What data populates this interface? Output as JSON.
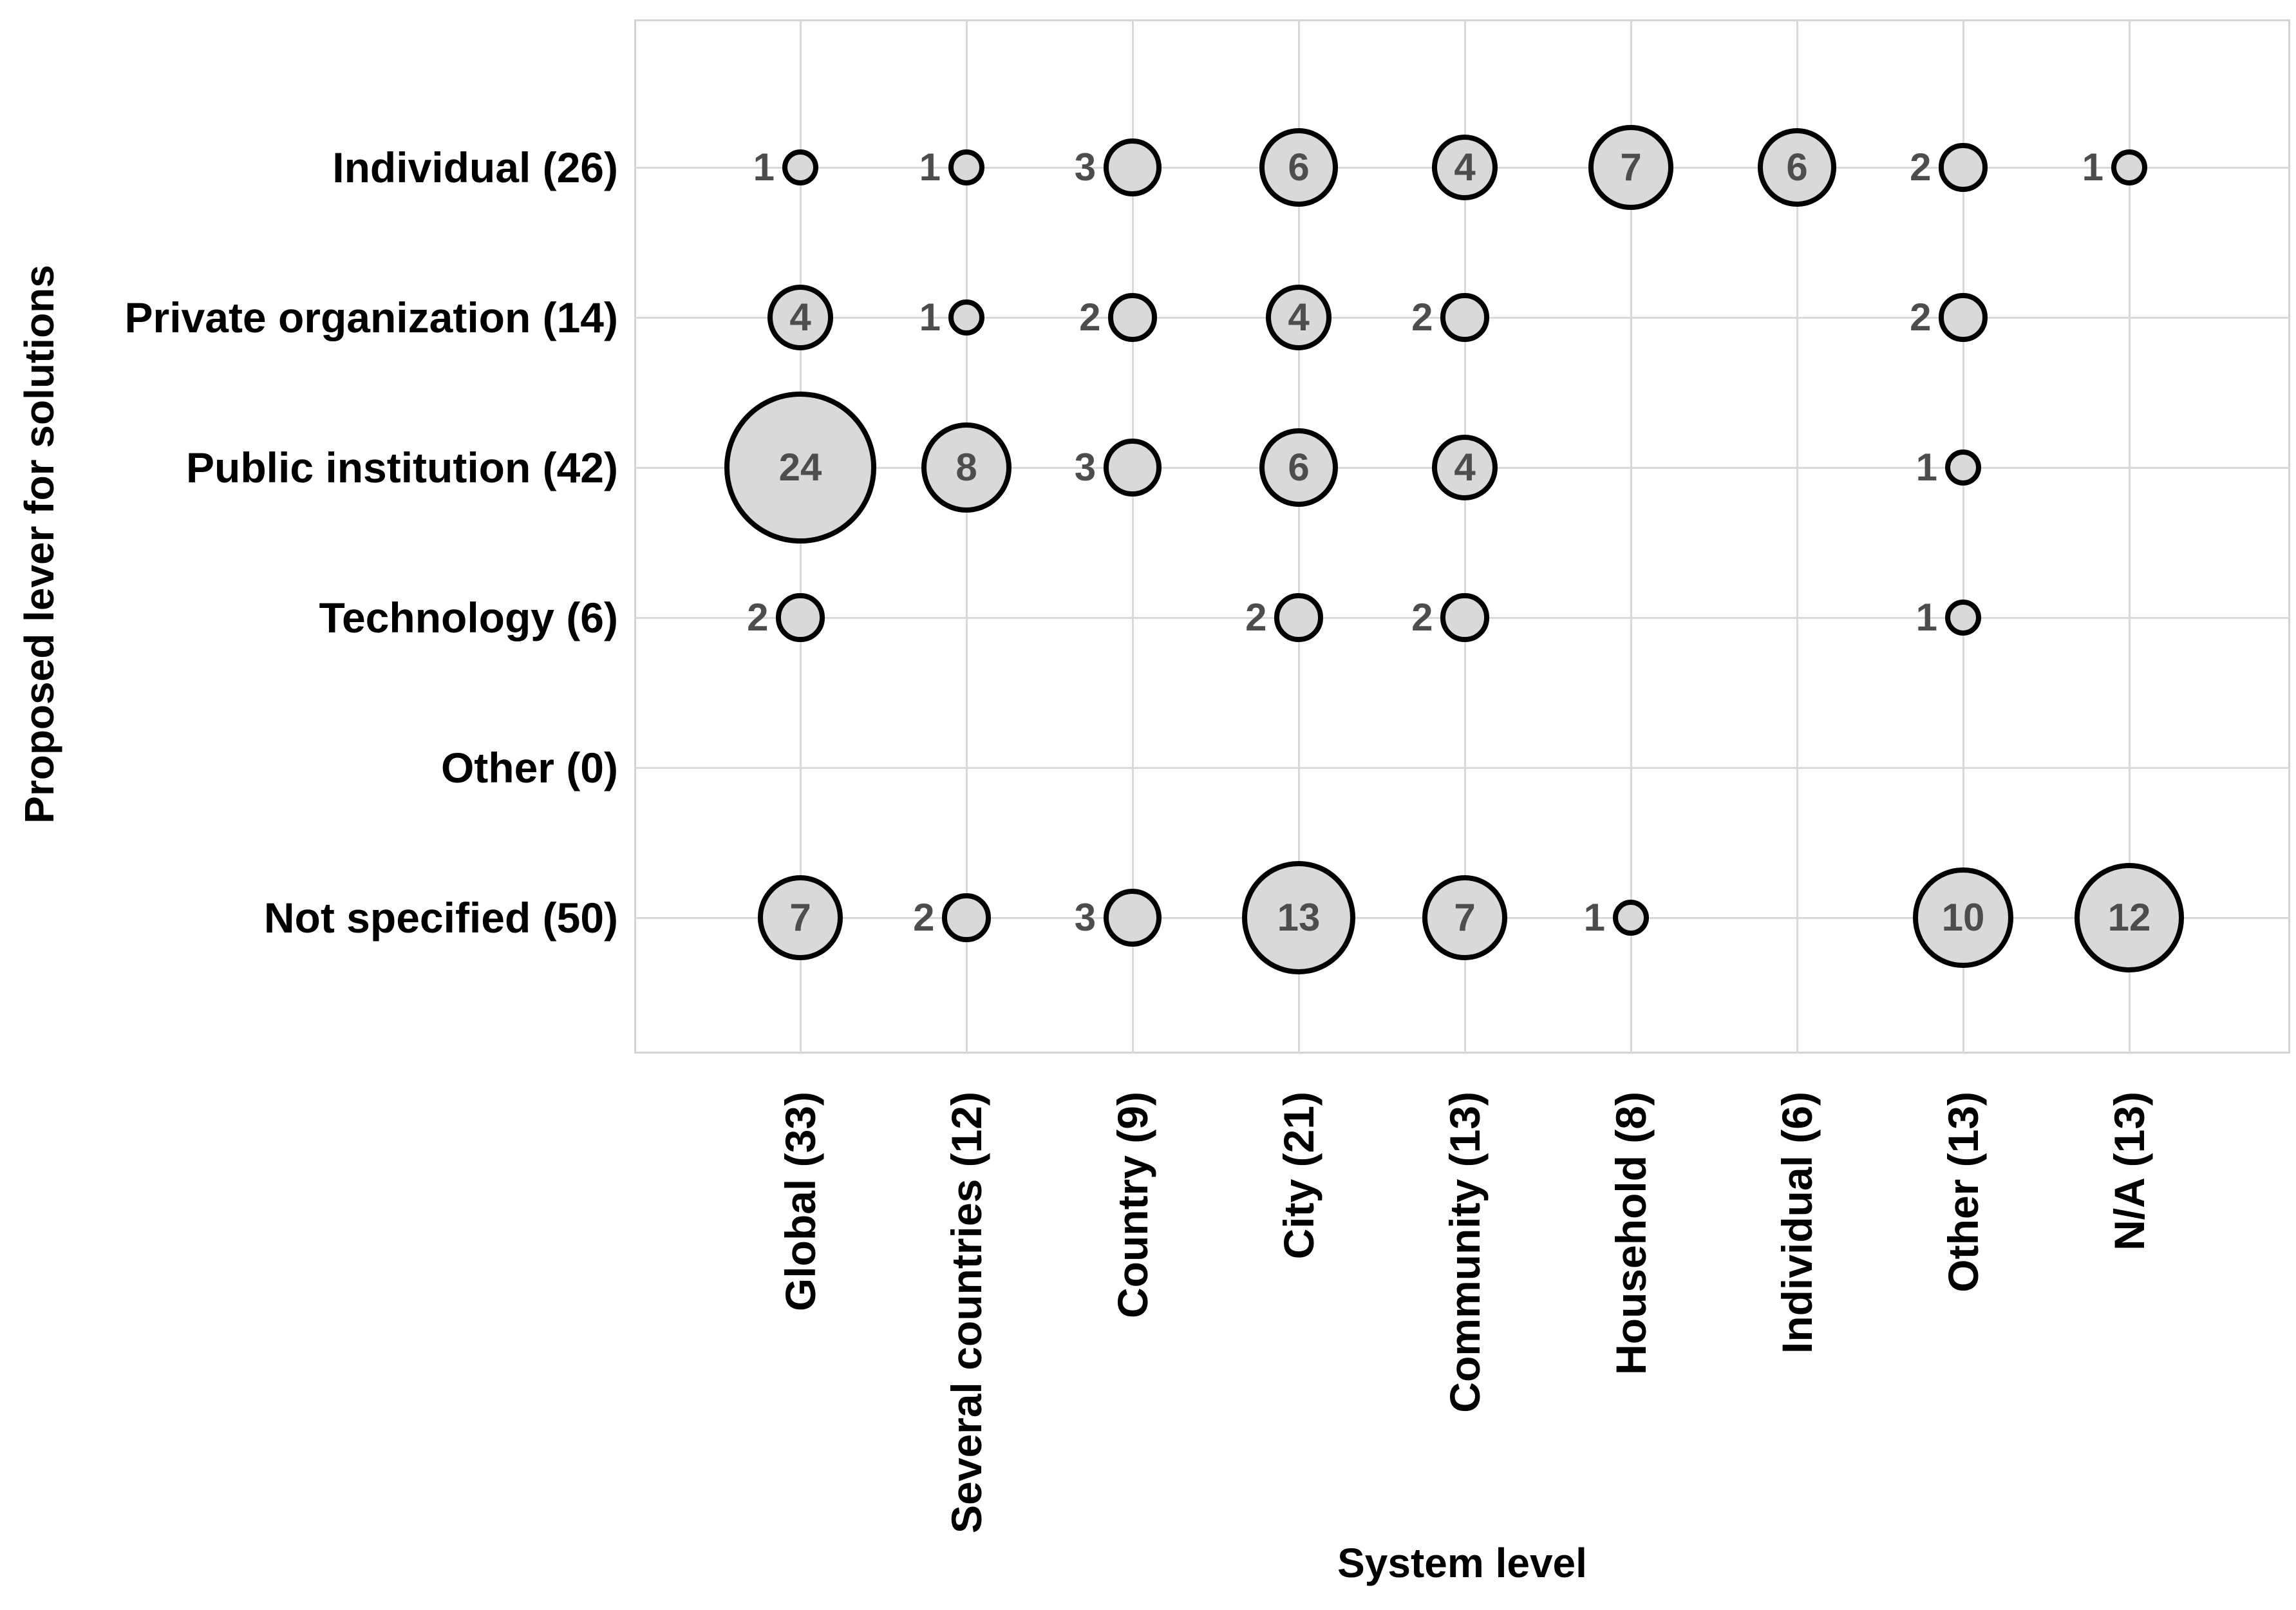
{
  "chart_data": {
    "type": "bubble",
    "title": "",
    "xlabel": "System level",
    "ylabel": "Proposed lever for solutions",
    "x_categories": [
      "Global (33)",
      "Several countries (12)",
      "Country (9)",
      "City (21)",
      "Community (13)",
      "Household (8)",
      "Individual (6)",
      "Other (13)",
      "N/A (13)"
    ],
    "y_categories": [
      "Individual (26)",
      "Private organization (14)",
      "Public institution (42)",
      "Technology (6)",
      "Other (0)",
      "Not specified (50)"
    ],
    "series": [
      {
        "name": "Individual (26)",
        "values": [
          1,
          1,
          3,
          6,
          4,
          7,
          6,
          2,
          1
        ]
      },
      {
        "name": "Private organization (14)",
        "values": [
          4,
          1,
          2,
          4,
          2,
          null,
          null,
          2,
          null
        ]
      },
      {
        "name": "Public institution (42)",
        "values": [
          24,
          8,
          3,
          6,
          4,
          null,
          null,
          1,
          null
        ]
      },
      {
        "name": "Technology (6)",
        "values": [
          2,
          null,
          null,
          2,
          2,
          null,
          null,
          1,
          null
        ]
      },
      {
        "name": "Other (0)",
        "values": [
          null,
          null,
          null,
          null,
          null,
          null,
          null,
          null,
          null
        ]
      },
      {
        "name": "Not specified (50)",
        "values": [
          7,
          2,
          3,
          13,
          7,
          1,
          null,
          10,
          12
        ]
      }
    ],
    "value_label_inside_min": 4,
    "bubble_sizing": "area-proportional",
    "grid": true,
    "legend": "none",
    "x_tick_rotation_deg": -90,
    "colors": {
      "bubble_fill": "#d9d9d9",
      "bubble_stroke": "#000000",
      "gridline": "#d9d9d9",
      "plot_border": "#d3d3d3",
      "value_label": "#4d4d4d",
      "axis_text": "#000000",
      "background": "#ffffff"
    }
  }
}
